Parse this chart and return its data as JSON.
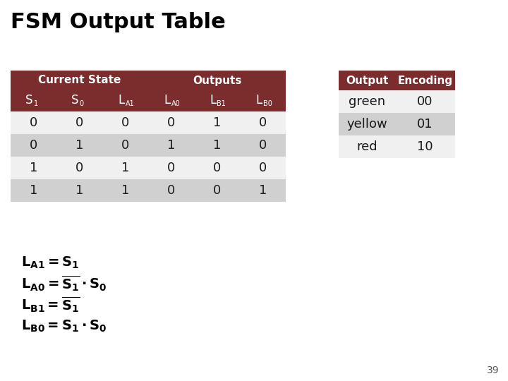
{
  "title": "FSM Output Table",
  "title_fontsize": 22,
  "bg_color": "#ffffff",
  "header_color": "#7B2C2C",
  "header_text_color": "#ffffff",
  "row_colors": [
    "#f0f0f0",
    "#d0d0d0",
    "#f0f0f0",
    "#d0d0d0"
  ],
  "main_table": {
    "data": [
      [
        "0",
        "0",
        "0",
        "0",
        "1",
        "0"
      ],
      [
        "0",
        "1",
        "0",
        "1",
        "1",
        "0"
      ],
      [
        "1",
        "0",
        "1",
        "0",
        "0",
        "0"
      ],
      [
        "1",
        "1",
        "1",
        "0",
        "0",
        "1"
      ]
    ]
  },
  "encoding_table": {
    "headers": [
      "Output",
      "Encoding"
    ],
    "data": [
      [
        "green",
        "00"
      ],
      [
        "yellow",
        "01"
      ],
      [
        "red",
        "10"
      ]
    ],
    "row_colors": [
      "#f0f0f0",
      "#d0d0d0",
      "#f0f0f0"
    ]
  },
  "footnote": "39"
}
